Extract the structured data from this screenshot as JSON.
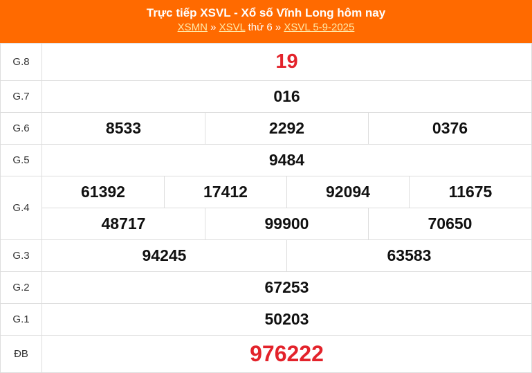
{
  "header": {
    "title": "Trực tiếp XSVL - Xổ số Vĩnh Long hôm nay",
    "link1": "XSMN",
    "sep1": " » ",
    "link2": "XSVL",
    "mid": " thứ 6 » ",
    "link3": "XSVL 5-9-2025"
  },
  "prizes": [
    {
      "label": "G.8",
      "numbers": [
        "19"
      ]
    },
    {
      "label": "G.7",
      "numbers": [
        "016"
      ]
    },
    {
      "label": "G.6",
      "numbers": [
        "8533",
        "2292",
        "0376"
      ]
    },
    {
      "label": "G.5",
      "numbers": [
        "9484"
      ]
    },
    {
      "label": "G.4",
      "numbers": [
        "61392",
        "17412",
        "92094",
        "11675",
        "48717",
        "99900",
        "70650"
      ]
    },
    {
      "label": "G.3",
      "numbers": [
        "94245",
        "63583"
      ]
    },
    {
      "label": "G.2",
      "numbers": [
        "67253"
      ]
    },
    {
      "label": "G.1",
      "numbers": [
        "50203"
      ]
    },
    {
      "label": "ĐB",
      "numbers": [
        "976222"
      ]
    }
  ],
  "colors": {
    "header": "#ff6a00",
    "highlight": "#e3232b"
  }
}
